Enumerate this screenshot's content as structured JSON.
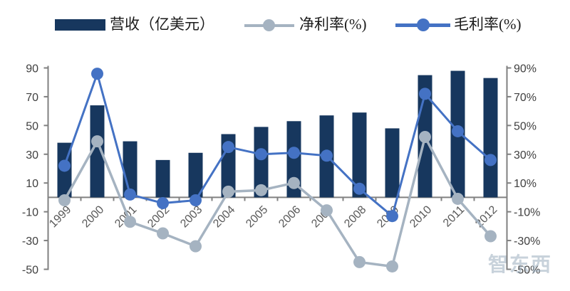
{
  "legend": {
    "revenue_label": "营收（亿美元）",
    "net_margin_label": "净利率(%)",
    "gross_margin_label": "毛利率(%)"
  },
  "watermark": "智东西",
  "colors": {
    "bar": "#17375e",
    "net_line": "#a5b3c1",
    "gross_line": "#4472c4",
    "axis": "#808080",
    "y_tick_label": "#404040",
    "x_tick_label": "#595959"
  },
  "chart_data": {
    "type": "bar+line combo",
    "title": "",
    "categories": [
      "1999",
      "2000",
      "2001",
      "2002",
      "2003",
      "2004",
      "2005",
      "2006",
      "2007",
      "2008",
      "2009",
      "2010",
      "2011",
      "2012"
    ],
    "series": [
      {
        "name": "营收（亿美元）",
        "type": "bar",
        "axis": "left",
        "color": "#17375e",
        "values": [
          38,
          64,
          39,
          26,
          31,
          44,
          49,
          53,
          57,
          59,
          48,
          85,
          88,
          83
        ]
      },
      {
        "name": "净利率(%)",
        "type": "line",
        "axis": "right",
        "color": "#a5b3c1",
        "values": [
          -2,
          39,
          -17,
          -25,
          -34,
          4,
          5,
          10,
          -9,
          -45,
          -48,
          42,
          -1,
          -27
        ]
      },
      {
        "name": "毛利率(%)",
        "type": "line",
        "axis": "right",
        "color": "#4472c4",
        "values": [
          22,
          86,
          2,
          -4,
          -2,
          35,
          30,
          31,
          29,
          6,
          -13,
          72,
          46,
          26
        ]
      }
    ],
    "left_axis": {
      "min": -50,
      "max": 90,
      "tick_step": 20,
      "tick_labels": [
        "90",
        "70",
        "50",
        "30",
        "10",
        "-10",
        "-30",
        "-50"
      ]
    },
    "right_axis": {
      "min": -50,
      "max": 90,
      "tick_step": 20,
      "tick_labels": [
        "90%",
        "70%",
        "50%",
        "30%",
        "10%",
        "-10%",
        "-30%",
        "-50%"
      ]
    },
    "grid": false,
    "legend_position": "top",
    "x_label_rotation": -45
  }
}
